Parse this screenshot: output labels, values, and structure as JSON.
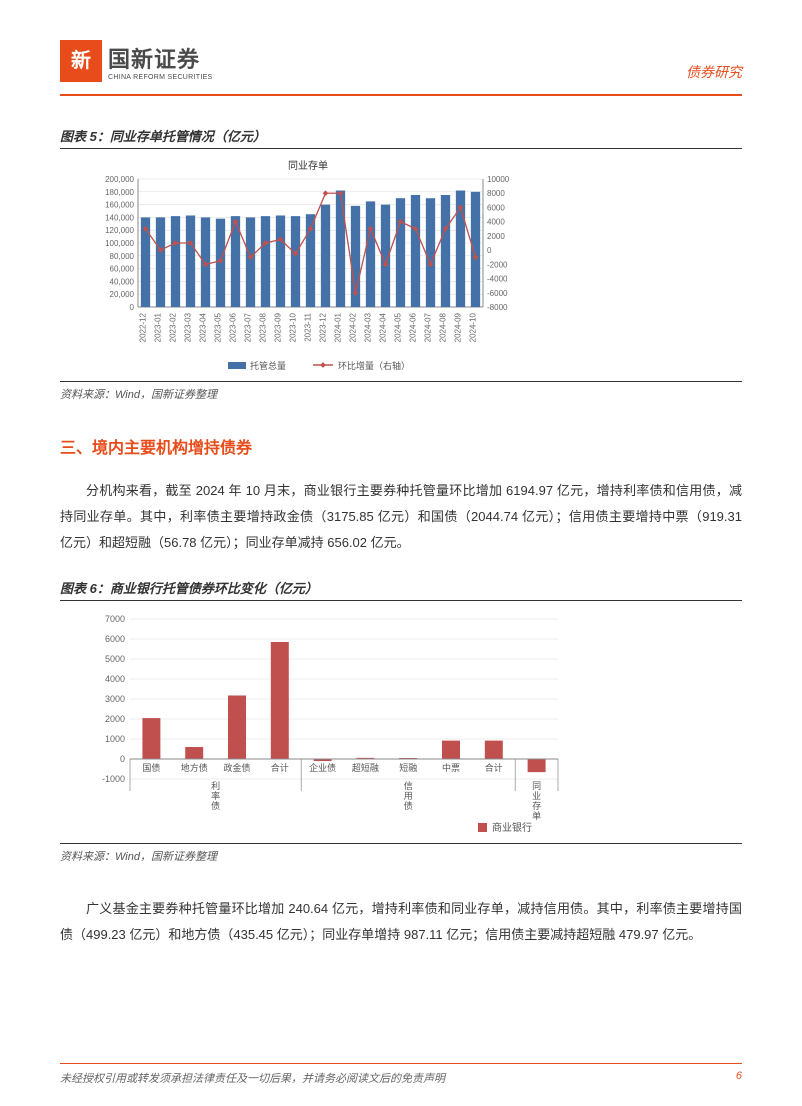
{
  "header": {
    "logo_glyph": "新",
    "company_cn": "国新证券",
    "company_en": "CHINA REFORM SECURITIES",
    "doc_type": "债券研究"
  },
  "chart5": {
    "title": "图表 5：同业存单托管情况（亿元）",
    "type": "bar-line-combo",
    "subtitle": "同业存单",
    "legend_bar": "托管总量",
    "legend_line": "环比增量（右轴）",
    "bar_color": "#4472a8",
    "line_color": "#c0504d",
    "bg_color": "#ffffff",
    "grid_color": "#d9d9d9",
    "axis_color": "#888888",
    "font_size_axis": 8,
    "font_size_title": 10,
    "categories": [
      "2022-12",
      "2023-01",
      "2023-02",
      "2023-03",
      "2023-04",
      "2023-05",
      "2023-06",
      "2023-07",
      "2023-08",
      "2023-09",
      "2023-10",
      "2023-11",
      "2023-12",
      "2024-01",
      "2024-02",
      "2024-03",
      "2024-04",
      "2024-05",
      "2024-06",
      "2024-07",
      "2024-08",
      "2024-09",
      "2024-10"
    ],
    "bars": [
      140000,
      140000,
      142000,
      143000,
      140000,
      138000,
      142000,
      140000,
      142000,
      143000,
      142000,
      145000,
      160000,
      182000,
      158000,
      165000,
      160000,
      170000,
      175000,
      170000,
      175000,
      182000,
      180000
    ],
    "line": [
      3000,
      0,
      1000,
      1000,
      -2000,
      -1500,
      4000,
      -1000,
      1000,
      1500,
      -500,
      3000,
      8000,
      8000,
      -6000,
      3000,
      -2000,
      4000,
      3000,
      -2000,
      3000,
      6000,
      -1000
    ],
    "y1_min": 0,
    "y1_max": 200000,
    "y1_step": 20000,
    "y2_min": -8000,
    "y2_max": 10000,
    "y2_step": 2000
  },
  "source_text": "资料来源：Wind，国新证券整理",
  "section3": {
    "title": "三、境内主要机构增持债券",
    "para1": "分机构来看，截至 2024 年 10 月末，商业银行主要券种托管量环比增加 6194.97 亿元，增持利率债和信用债，减持同业存单。其中，利率债主要增持政金债（3175.85 亿元）和国债（2044.74 亿元）；信用债主要增持中票（919.31 亿元）和超短融（56.78 亿元）；同业存单减持 656.02 亿元。"
  },
  "chart6": {
    "title": "图表 6：商业银行托管债券环比变化（亿元）",
    "type": "bar",
    "legend": "商业银行",
    "bar_color": "#c0504d",
    "bg_color": "#ffffff",
    "grid_color": "#d9d9d9",
    "axis_color": "#888888",
    "font_size_axis": 9,
    "y_min": -1000,
    "y_max": 7000,
    "y_step": 1000,
    "groups": [
      {
        "group": "利率债",
        "items": [
          {
            "label": "国债",
            "value": 2044.74
          },
          {
            "label": "地方债",
            "value": 600
          },
          {
            "label": "政金债",
            "value": 3175.85
          },
          {
            "label": "合计",
            "value": 5850
          }
        ]
      },
      {
        "group": "信用债",
        "items": [
          {
            "label": "企业债",
            "value": -100
          },
          {
            "label": "超短融",
            "value": 56.78
          },
          {
            "label": "短融",
            "value": 50
          },
          {
            "label": "中票",
            "value": 919.31
          },
          {
            "label": "合计",
            "value": 920
          }
        ]
      },
      {
        "group": "同业存单",
        "items": [
          {
            "label": "",
            "value": -656.02
          }
        ]
      }
    ]
  },
  "para2": "广义基金主要券种托管量环比增加 240.64 亿元，增持利率债和同业存单，减持信用债。其中，利率债主要增持国债（499.23 亿元）和地方债（435.45 亿元）；同业存单增持 987.11 亿元；信用债主要减持超短融 479.97 亿元。",
  "footer": {
    "disclaimer": "未经授权引用或转发须承担法律责任及一切后果，并请务必阅读文后的免责声明",
    "page": "6"
  }
}
